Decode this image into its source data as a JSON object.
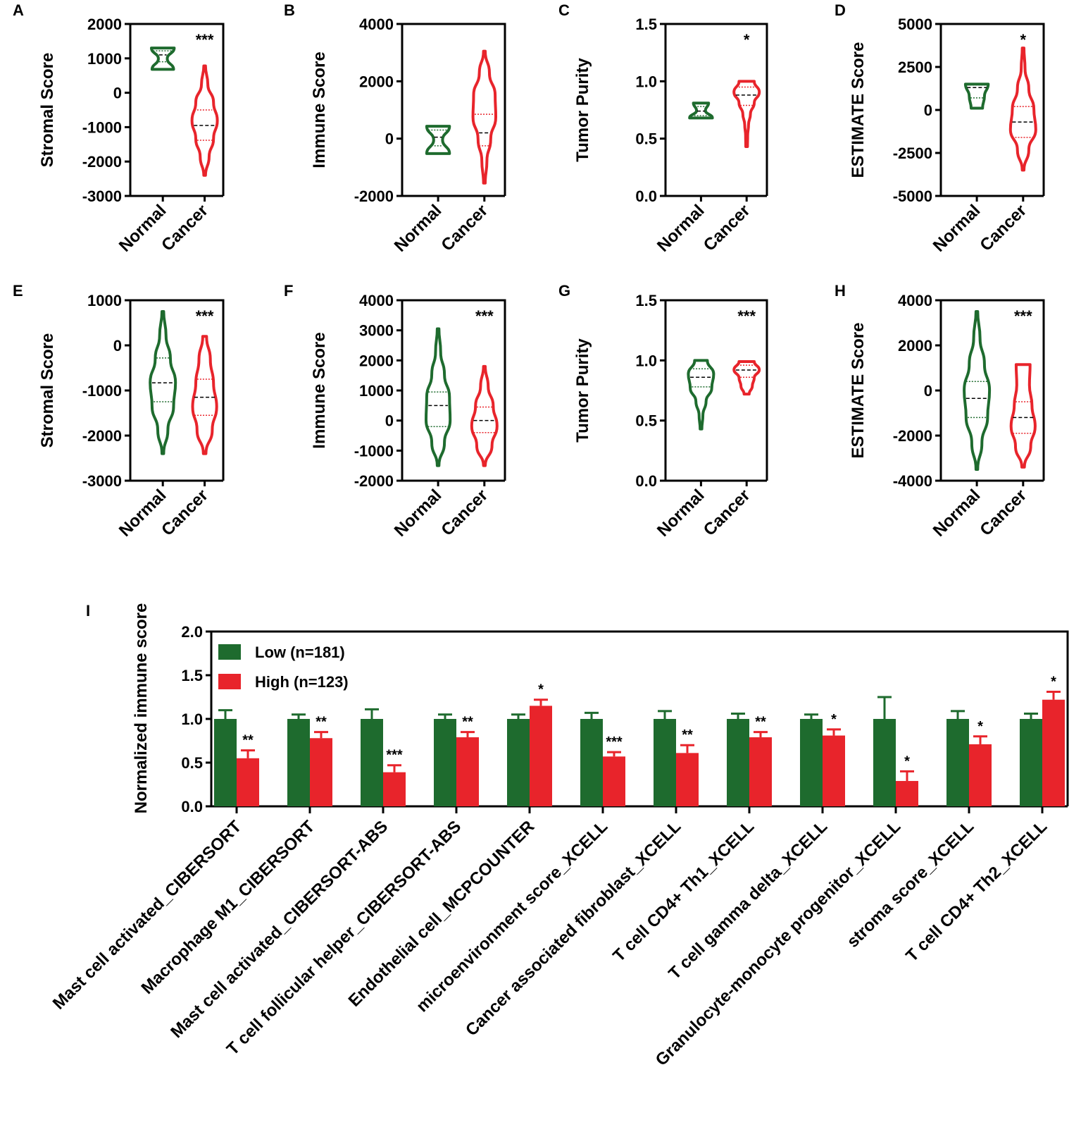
{
  "colors": {
    "normal": "#1e6b2e",
    "cancer": "#e8242b",
    "axis": "#000000"
  },
  "chart_data": [
    {
      "panel": "A",
      "type": "violin",
      "ylabel": "Stromal Score",
      "ylim": [
        -3000,
        2000
      ],
      "yticks": [
        2000,
        1000,
        0,
        -1000,
        -2000,
        -3000
      ],
      "tick_labels": [
        "2000",
        "1000",
        "0",
        "-1000",
        "-2000",
        "-3000"
      ],
      "categories": [
        "Normal",
        "Cancer"
      ],
      "significance": "***",
      "groups": [
        {
          "name": "Normal",
          "min": 680,
          "max": 1300,
          "median": 1100,
          "q1": 900,
          "q3": 1220,
          "shape": [
            0.85,
            0.35,
            0.9
          ],
          "color": "normal"
        },
        {
          "name": "Cancer",
          "min": -2400,
          "max": 780,
          "median": -950,
          "q1": -1380,
          "q3": -500,
          "shape": [
            0.05,
            0.35,
            0.7,
            1.0,
            0.7,
            0.25,
            0.05
          ],
          "color": "cancer"
        }
      ]
    },
    {
      "panel": "B",
      "type": "violin",
      "ylabel": "Immune Score",
      "ylim": [
        -2000,
        4000
      ],
      "yticks": [
        4000,
        2000,
        0,
        -2000
      ],
      "tick_labels": [
        "4000",
        "2000",
        "0",
        "-2000"
      ],
      "categories": [
        "Normal",
        "Cancer"
      ],
      "significance": "",
      "groups": [
        {
          "name": "Normal",
          "min": -520,
          "max": 430,
          "median": 50,
          "q1": -250,
          "q3": 300,
          "shape": [
            0.9,
            0.35,
            0.9
          ],
          "color": "normal"
        },
        {
          "name": "Cancer",
          "min": -1550,
          "max": 3050,
          "median": 200,
          "q1": -250,
          "q3": 850,
          "shape": [
            0.05,
            0.2,
            0.5,
            0.9,
            0.85,
            0.4,
            0.05
          ],
          "color": "cancer"
        }
      ]
    },
    {
      "panel": "C",
      "type": "violin",
      "ylabel": "Tumor Purity",
      "ylim": [
        0,
        1.5
      ],
      "yticks": [
        1.5,
        1.0,
        0.5,
        0.0
      ],
      "tick_labels": [
        "1.5",
        "1.0",
        "0.5",
        "0.0"
      ],
      "categories": [
        "Normal",
        "Cancer"
      ],
      "significance": "*",
      "groups": [
        {
          "name": "Normal",
          "min": 0.68,
          "max": 0.81,
          "median": 0.74,
          "q1": 0.7,
          "q3": 0.78,
          "shape": [
            0.9,
            0.35,
            0.6
          ],
          "color": "normal"
        },
        {
          "name": "Cancer",
          "min": 0.43,
          "max": 1.0,
          "median": 0.88,
          "q1": 0.79,
          "q3": 0.95,
          "shape": [
            0.03,
            0.08,
            0.15,
            0.3,
            0.6,
            1.0,
            0.6
          ],
          "color": "cancer"
        }
      ]
    },
    {
      "panel": "D",
      "type": "violin",
      "ylabel": "ESTIMATE Score",
      "ylim": [
        -5000,
        5000
      ],
      "yticks": [
        5000,
        2500,
        0,
        -2500,
        -5000
      ],
      "tick_labels": [
        "5000",
        "2500",
        "0",
        "-2500",
        "-5000"
      ],
      "categories": [
        "Normal",
        "Cancer"
      ],
      "significance": "*",
      "groups": [
        {
          "name": "Normal",
          "min": 100,
          "max": 1500,
          "median": 1300,
          "q1": 700,
          "q3": 1450,
          "shape": [
            0.45,
            0.6,
            0.9
          ],
          "color": "normal"
        },
        {
          "name": "Cancer",
          "min": -3500,
          "max": 3600,
          "median": -700,
          "q1": -1600,
          "q3": 200,
          "shape": [
            0.05,
            0.45,
            1.0,
            0.85,
            0.45,
            0.15,
            0.05
          ],
          "color": "cancer"
        }
      ]
    },
    {
      "panel": "E",
      "type": "violin",
      "ylabel": "Stromal Score",
      "ylim": [
        -3000,
        1000
      ],
      "yticks": [
        1000,
        0,
        -1000,
        -2000,
        -3000
      ],
      "tick_labels": [
        "1000",
        "0",
        "-1000",
        "-2000",
        "-3000"
      ],
      "categories": [
        "Normal",
        "Cancer"
      ],
      "significance": "***",
      "groups": [
        {
          "name": "Normal",
          "min": -2400,
          "max": 750,
          "median": -830,
          "q1": -1250,
          "q3": -280,
          "shape": [
            0.05,
            0.4,
            0.85,
            1.0,
            0.6,
            0.25,
            0.05
          ],
          "color": "normal"
        },
        {
          "name": "Cancer",
          "min": -2400,
          "max": 200,
          "median": -1150,
          "q1": -1550,
          "q3": -750,
          "shape": [
            0.1,
            0.6,
            0.95,
            0.7,
            0.45,
            0.15
          ],
          "color": "cancer"
        }
      ]
    },
    {
      "panel": "F",
      "type": "violin",
      "ylabel": "Immune Score",
      "ylim": [
        -2000,
        4000
      ],
      "yticks": [
        4000,
        3000,
        2000,
        1000,
        0,
        -1000,
        -2000
      ],
      "tick_labels": [
        "4000",
        "3000",
        "2000",
        "1000",
        "0",
        "-1000",
        "-2000"
      ],
      "categories": [
        "Normal",
        "Cancer"
      ],
      "significance": "***",
      "groups": [
        {
          "name": "Normal",
          "min": -1500,
          "max": 3050,
          "median": 500,
          "q1": -200,
          "q3": 950,
          "shape": [
            0.05,
            0.5,
            0.95,
            0.9,
            0.5,
            0.2,
            0.05
          ],
          "color": "normal"
        },
        {
          "name": "Cancer",
          "min": -1500,
          "max": 1800,
          "median": 0,
          "q1": -400,
          "q3": 450,
          "shape": [
            0.05,
            0.6,
            1.0,
            0.7,
            0.3,
            0.05
          ],
          "color": "cancer"
        }
      ]
    },
    {
      "panel": "G",
      "type": "violin",
      "ylabel": "Tumor Purity",
      "ylim": [
        0,
        1.5
      ],
      "yticks": [
        1.5,
        1.0,
        0.5,
        0.0
      ],
      "tick_labels": [
        "1.5",
        "1.0",
        "0.5",
        "0.0"
      ],
      "categories": [
        "Normal",
        "Cancer"
      ],
      "significance": "***",
      "groups": [
        {
          "name": "Normal",
          "min": 0.43,
          "max": 1.0,
          "median": 0.86,
          "q1": 0.78,
          "q3": 0.93,
          "shape": [
            0.05,
            0.15,
            0.4,
            0.85,
            1.0,
            0.5
          ],
          "color": "normal"
        },
        {
          "name": "Cancer",
          "min": 0.72,
          "max": 0.99,
          "median": 0.92,
          "q1": 0.86,
          "q3": 0.96,
          "shape": [
            0.2,
            0.45,
            0.6,
            1.0,
            0.6
          ],
          "color": "cancer"
        }
      ]
    },
    {
      "panel": "H",
      "type": "violin",
      "ylabel": "ESTIMATE Score",
      "ylim": [
        -4000,
        4000
      ],
      "yticks": [
        4000,
        2000,
        0,
        -2000,
        -4000
      ],
      "tick_labels": [
        "4000",
        "2000",
        "0",
        "-2000",
        "-4000"
      ],
      "categories": [
        "Normal",
        "Cancer"
      ],
      "significance": "***",
      "groups": [
        {
          "name": "Normal",
          "min": -3500,
          "max": 3500,
          "median": -350,
          "q1": -1200,
          "q3": 400,
          "shape": [
            0.05,
            0.4,
            0.85,
            1.0,
            0.6,
            0.25,
            0.05
          ],
          "color": "normal"
        },
        {
          "name": "Cancer",
          "min": -3400,
          "max": 1150,
          "median": -1200,
          "q1": -1900,
          "q3": -500,
          "shape": [
            0.1,
            0.6,
            0.95,
            0.7,
            0.5,
            0.55
          ],
          "color": "cancer"
        }
      ]
    },
    {
      "panel": "I",
      "type": "bar",
      "ylabel": "Normalized immune score",
      "ylim": [
        0,
        2.0
      ],
      "yticks": [
        2.0,
        1.5,
        1.0,
        0.5,
        0.0
      ],
      "tick_labels": [
        "2.0",
        "1.5",
        "1.0",
        "0.5",
        "0.0"
      ],
      "legend": [
        "Low (n=181)",
        "High (n=123)"
      ],
      "categories": [
        "Mast cell activated_CIBERSORT",
        "Macrophage M1_CIBERSORT",
        "Mast cell activated_CIBERSORT-ABS",
        "T cell follicular helper_CIBERSORT-ABS",
        "Endothelial cell_MCPCOUNTER",
        "microenvironment score_XCELL",
        "Cancer associated fibroblast_XCELL",
        "T cell CD4+ Th1_XCELL",
        "T cell gamma delta_XCELL",
        "Granulocyte-monocyte progenitor_XCELL",
        "stroma score_XCELL",
        "T cell CD4+ Th2_XCELL"
      ],
      "series": [
        {
          "name": "Low (n=181)",
          "color": "normal",
          "values": [
            1.0,
            1.0,
            1.0,
            1.0,
            1.0,
            1.0,
            1.0,
            1.0,
            1.0,
            1.0,
            1.0,
            1.0
          ],
          "errors": [
            0.1,
            0.05,
            0.11,
            0.05,
            0.05,
            0.07,
            0.09,
            0.06,
            0.05,
            0.25,
            0.09,
            0.06
          ]
        },
        {
          "name": "High (n=123)",
          "color": "cancer",
          "values": [
            0.55,
            0.78,
            0.39,
            0.79,
            1.15,
            0.57,
            0.61,
            0.79,
            0.81,
            0.29,
            0.71,
            1.22
          ],
          "errors": [
            0.09,
            0.07,
            0.08,
            0.06,
            0.07,
            0.05,
            0.09,
            0.06,
            0.07,
            0.11,
            0.09,
            0.09
          ]
        }
      ],
      "significance": [
        "**",
        "**",
        "***",
        "**",
        "*",
        "***",
        "**",
        "**",
        "*",
        "*",
        "*",
        "*"
      ]
    }
  ]
}
